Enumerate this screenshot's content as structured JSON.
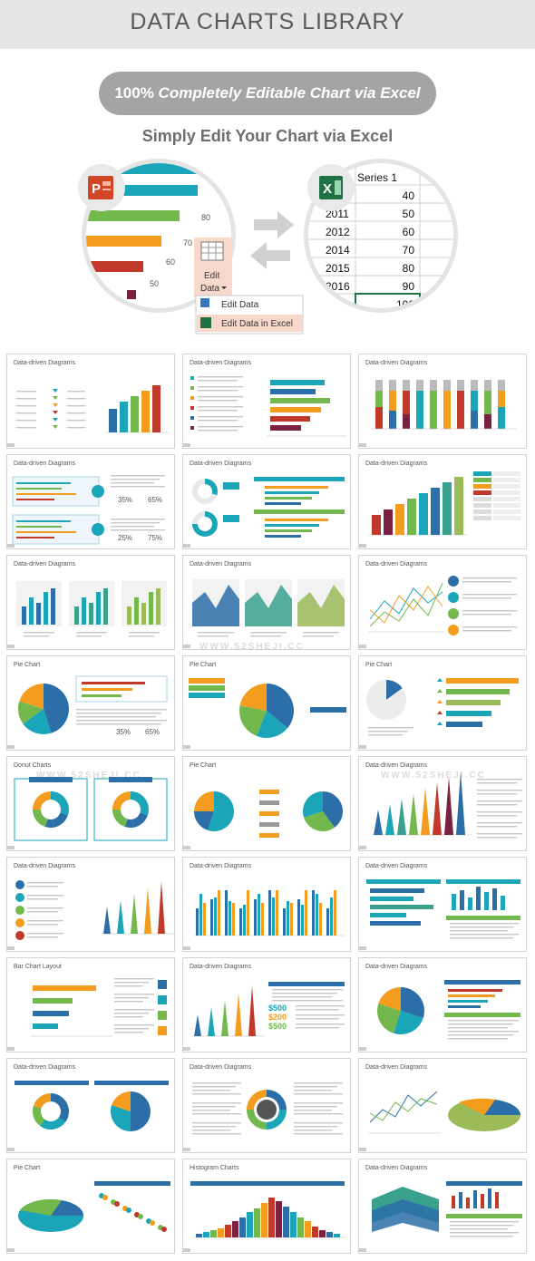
{
  "header": {
    "title": "DATA CHARTS LIBRARY"
  },
  "banner": {
    "bold": "100%",
    "italic": "Completely Editable Chart via Excel"
  },
  "subtitle": "Simply Edit Your Chart via Excel",
  "hero": {
    "bar_labels": [
      "80",
      "70",
      "60",
      "50"
    ],
    "edit_data_button": {
      "line1": "Edit",
      "line2": "Data"
    },
    "menu_items": [
      "Edit Data",
      "Edit Data in Excel"
    ],
    "excel": {
      "series_header": "Series 1",
      "rows": [
        {
          "year": "",
          "value": "40"
        },
        {
          "year": "2011",
          "value": "50"
        },
        {
          "year": "2012",
          "value": "60"
        },
        {
          "year": "2014",
          "value": "70"
        },
        {
          "year": "2015",
          "value": "80"
        },
        {
          "year": "2016",
          "value": "90"
        },
        {
          "year": "",
          "value": "100"
        }
      ]
    },
    "colors": {
      "teal": "#1aa5b8",
      "green": "#72b84d",
      "orange": "#f39c1d",
      "red": "#c0392b",
      "ppt": "#d24625",
      "excel": "#207245"
    }
  },
  "cards": [
    {
      "title": "Data-driven Diagrams",
      "kind": "bars_kpi"
    },
    {
      "title": "Data-driven Diagrams",
      "kind": "hbars"
    },
    {
      "title": "Data-driven Diagrams",
      "kind": "stacked"
    },
    {
      "title": "Data-driven Diagrams",
      "kind": "progress"
    },
    {
      "title": "Data-driven Diagrams",
      "kind": "donut_bars"
    },
    {
      "title": "Data-driven Diagrams",
      "kind": "bars_table"
    },
    {
      "title": "Data-driven Diagrams",
      "kind": "three_bars"
    },
    {
      "title": "Data-driven Diagrams",
      "kind": "area"
    },
    {
      "title": "Data-driven Diagrams",
      "kind": "lines_icons"
    },
    {
      "title": "Pie Chart",
      "kind": "pie_left"
    },
    {
      "title": "Pie Chart",
      "kind": "pie_center"
    },
    {
      "title": "Pie Chart",
      "kind": "pie_right"
    },
    {
      "title": "Donut Charts",
      "kind": "donuts"
    },
    {
      "title": "Pie Chart",
      "kind": "two_pies"
    },
    {
      "title": "Data-driven Diagrams",
      "kind": "cones"
    },
    {
      "title": "Data-driven Diagrams",
      "kind": "icons_cones"
    },
    {
      "title": "Data-driven Diagrams",
      "kind": "multi_bars"
    },
    {
      "title": "Data-driven Diagrams",
      "kind": "panel_bars"
    },
    {
      "title": "Bar Chart Layout",
      "kind": "hbar_layout"
    },
    {
      "title": "Data-driven Diagrams",
      "kind": "cones_money"
    },
    {
      "title": "Data-driven Diagrams",
      "kind": "pie_panel"
    },
    {
      "title": "Data-driven Diagrams",
      "kind": "two_donuts"
    },
    {
      "title": "Data-driven Diagrams",
      "kind": "donut_2015"
    },
    {
      "title": "Data-driven Diagrams",
      "kind": "line_pie3d"
    },
    {
      "title": "Pie Chart",
      "kind": "pie3d_dots"
    },
    {
      "title": "Histogram Charts",
      "kind": "histogram"
    },
    {
      "title": "Data-driven Diagrams",
      "kind": "ribbon_bars"
    }
  ],
  "money": [
    "$500",
    "$200",
    "$500"
  ],
  "percents": [
    "35%",
    "65%",
    "25%",
    "75%"
  ]
}
